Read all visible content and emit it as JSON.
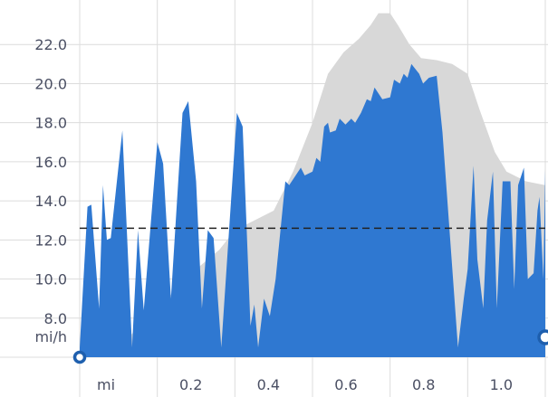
{
  "chart_data": {
    "type": "area",
    "title": "",
    "xlabel": "",
    "ylabel": "mi/h",
    "x_unit_label": "mi",
    "xlim": [
      0,
      1.2
    ],
    "ylim": [
      6.0,
      24.0
    ],
    "grid": true,
    "colors": {
      "series": "#2f78d1",
      "reference": "#d8d8d8",
      "average_line": "#222222",
      "marker_ring": "#1e5fae"
    },
    "y_ticks": [
      {
        "value": 8,
        "label": "8.0"
      },
      {
        "value": 10,
        "label": "10.0"
      },
      {
        "value": 12,
        "label": "12.0"
      },
      {
        "value": 14,
        "label": "14.0"
      },
      {
        "value": 16,
        "label": "16.0"
      },
      {
        "value": 18,
        "label": "18.0"
      },
      {
        "value": 20,
        "label": "20.0"
      },
      {
        "value": 22,
        "label": "22.0"
      }
    ],
    "x_ticks": [
      {
        "value": 0.2,
        "label": "0.2"
      },
      {
        "value": 0.4,
        "label": "0.4"
      },
      {
        "value": 0.6,
        "label": "0.6"
      },
      {
        "value": 0.8,
        "label": "0.8"
      },
      {
        "value": 1.0,
        "label": "1.0"
      }
    ],
    "average": 12.6,
    "series": [
      {
        "values": [
          [
            0.0,
            6.5
          ],
          [
            0.02,
            13.7
          ],
          [
            0.03,
            13.8
          ],
          [
            0.05,
            8.5
          ],
          [
            0.06,
            14.8
          ],
          [
            0.07,
            12.0
          ],
          [
            0.08,
            12.1
          ],
          [
            0.11,
            17.6
          ],
          [
            0.135,
            6.5
          ],
          [
            0.15,
            12.5
          ],
          [
            0.165,
            8.4
          ],
          [
            0.2,
            17.0
          ],
          [
            0.215,
            15.9
          ],
          [
            0.235,
            9.0
          ],
          [
            0.265,
            18.5
          ],
          [
            0.28,
            19.1
          ],
          [
            0.3,
            15.0
          ],
          [
            0.315,
            8.5
          ],
          [
            0.33,
            12.5
          ],
          [
            0.345,
            12.1
          ],
          [
            0.365,
            6.5
          ],
          [
            0.405,
            18.5
          ],
          [
            0.42,
            17.8
          ],
          [
            0.44,
            7.6
          ],
          [
            0.45,
            8.7
          ],
          [
            0.46,
            6.5
          ],
          [
            0.475,
            9.0
          ],
          [
            0.49,
            8.1
          ],
          [
            0.505,
            10.0
          ],
          [
            0.53,
            15.0
          ],
          [
            0.54,
            14.8
          ],
          [
            0.57,
            15.7
          ],
          [
            0.58,
            15.3
          ],
          [
            0.6,
            15.5
          ],
          [
            0.61,
            16.2
          ],
          [
            0.62,
            16.0
          ],
          [
            0.63,
            17.8
          ],
          [
            0.64,
            18.0
          ],
          [
            0.645,
            17.5
          ],
          [
            0.66,
            17.6
          ],
          [
            0.67,
            18.2
          ],
          [
            0.685,
            17.9
          ],
          [
            0.7,
            18.2
          ],
          [
            0.71,
            18.0
          ],
          [
            0.725,
            18.5
          ],
          [
            0.74,
            19.2
          ],
          [
            0.75,
            19.1
          ],
          [
            0.76,
            19.8
          ],
          [
            0.78,
            19.2
          ],
          [
            0.8,
            19.3
          ],
          [
            0.81,
            20.2
          ],
          [
            0.825,
            20.0
          ],
          [
            0.835,
            20.5
          ],
          [
            0.845,
            20.3
          ],
          [
            0.855,
            21.0
          ],
          [
            0.875,
            20.5
          ],
          [
            0.885,
            20.0
          ],
          [
            0.9,
            20.3
          ],
          [
            0.92,
            20.4
          ],
          [
            0.935,
            17.5
          ],
          [
            0.975,
            6.5
          ],
          [
            0.99,
            9.0
          ],
          [
            1.0,
            10.5
          ],
          [
            1.015,
            15.8
          ],
          [
            1.025,
            11.0
          ],
          [
            1.04,
            8.5
          ],
          [
            1.05,
            13.0
          ],
          [
            1.065,
            15.5
          ],
          [
            1.075,
            8.5
          ],
          [
            1.09,
            15.0
          ],
          [
            1.11,
            15.0
          ],
          [
            1.12,
            9.5
          ],
          [
            1.13,
            14.8
          ],
          [
            1.145,
            15.7
          ],
          [
            1.155,
            10.0
          ],
          [
            1.17,
            10.3
          ],
          [
            1.18,
            13.5
          ],
          [
            1.185,
            14.2
          ],
          [
            1.195,
            10.0
          ],
          [
            1.2,
            15.6
          ]
        ]
      },
      {
        "values": [
          [
            0.0,
            6.5
          ],
          [
            0.1,
            6.5
          ],
          [
            0.3,
            10.5
          ],
          [
            0.36,
            11.5
          ],
          [
            0.4,
            12.5
          ],
          [
            0.45,
            13.0
          ],
          [
            0.5,
            13.5
          ],
          [
            0.55,
            15.5
          ],
          [
            0.6,
            18.0
          ],
          [
            0.64,
            20.5
          ],
          [
            0.68,
            21.6
          ],
          [
            0.72,
            22.3
          ],
          [
            0.75,
            23.0
          ],
          [
            0.77,
            23.6
          ],
          [
            0.8,
            23.6
          ],
          [
            0.82,
            23.0
          ],
          [
            0.85,
            22.0
          ],
          [
            0.88,
            21.3
          ],
          [
            0.92,
            21.2
          ],
          [
            0.96,
            21.0
          ],
          [
            1.0,
            20.5
          ],
          [
            1.03,
            18.7
          ],
          [
            1.07,
            16.5
          ],
          [
            1.1,
            15.5
          ],
          [
            1.15,
            15.0
          ],
          [
            1.2,
            14.8
          ]
        ]
      }
    ]
  }
}
